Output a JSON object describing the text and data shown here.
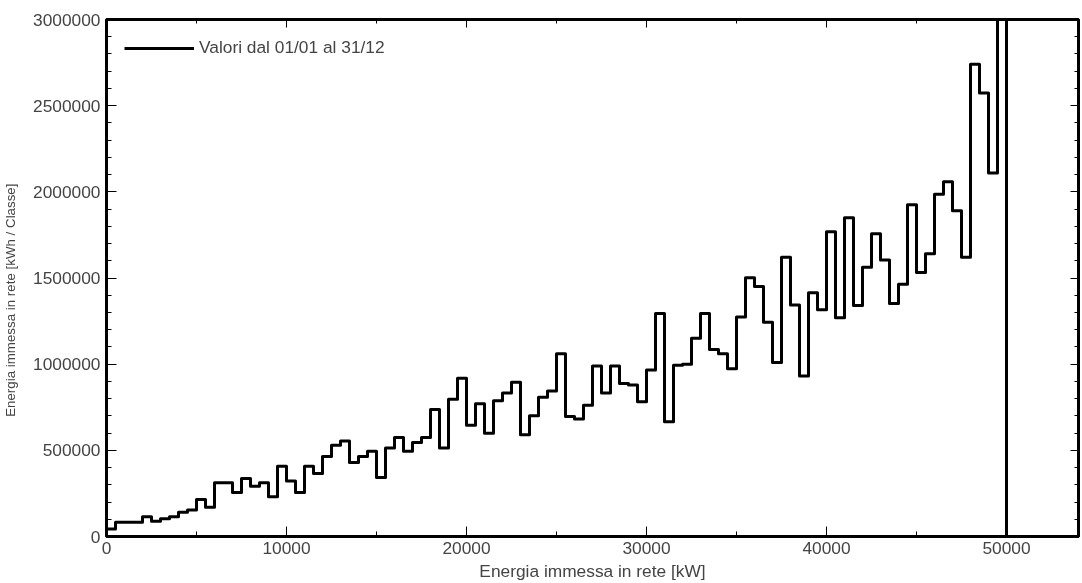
{
  "chart_data": {
    "type": "histogram",
    "xlabel": "Energia immessa in rete [kW]",
    "ylabel": "Energia   immessa   in   rete   [kWh   /   Classe]",
    "bins": [
      0,
      500,
      1000,
      1500,
      2000,
      2500,
      3000,
      3500,
      4000,
      4500,
      5000,
      5500,
      6000,
      6500,
      7000,
      7500,
      8000,
      8500,
      9000,
      9500,
      10000,
      10500,
      11000,
      11500,
      12000,
      12500,
      13000,
      13500,
      14000,
      14500,
      15000,
      15500,
      16000,
      16500,
      17000,
      17500,
      18000,
      18500,
      19000,
      19500,
      20000,
      20500,
      21000,
      21500,
      22000,
      22500,
      23000,
      23500,
      24000,
      24500,
      25000,
      25500,
      26000,
      26500,
      27000,
      27500,
      28000,
      28500,
      29000,
      29500,
      30000,
      30500,
      31000,
      31500,
      32000,
      32500,
      33000,
      33500,
      34000,
      34500,
      35000,
      35500,
      36000,
      36500,
      37000,
      37500,
      38000,
      38500,
      39000,
      39500,
      40000,
      40500,
      41000,
      41500,
      42000,
      42500,
      43000,
      43500,
      44000,
      44500,
      45000,
      45500,
      46000,
      46500,
      47000,
      47500,
      48000,
      48500,
      49000,
      49500,
      50000
    ],
    "series": [
      {
        "name": "Valori dal 01/01 al 31/12",
        "color": "#000000",
        "values": [
          44000,
          83000,
          83000,
          83000,
          115000,
          89000,
          103000,
          115000,
          140000,
          154000,
          214000,
          170000,
          312000,
          312000,
          255000,
          336000,
          292000,
          312000,
          230000,
          408000,
          322000,
          256000,
          408000,
          366000,
          464000,
          530000,
          554000,
          430000,
          464000,
          494000,
          342000,
          514000,
          575000,
          494000,
          545000,
          575000,
          737000,
          514000,
          797000,
          919000,
          646000,
          771000,
          599000,
          788000,
          832000,
          895000,
          591000,
          700000,
          808000,
          844000,
          1061000,
          697000,
          682000,
          761000,
          990000,
          832000,
          990000,
          888000,
          879000,
          782000,
          966000,
          1294000,
          666000,
          994000,
          1000000,
          1150000,
          1294000,
          1085000,
          1061000,
          974000,
          1274000,
          1502000,
          1451000,
          1243000,
          1010000,
          1621000,
          1344000,
          931000,
          1415000,
          1316000,
          1769000,
          1269000,
          1850000,
          1340000,
          1563000,
          1757000,
          1605000,
          1352000,
          1464000,
          1925000,
          1532000,
          1641000,
          1986000,
          2059000,
          1890000,
          1621000,
          2741000,
          2573000,
          2109000,
          3000000
        ]
      }
    ],
    "xlim": [
      0,
      54000
    ],
    "xticks": [
      0,
      10000,
      20000,
      30000,
      40000,
      50000
    ],
    "ylim": [
      0,
      3000000
    ],
    "yticks": [
      0,
      500000,
      1000000,
      1500000,
      2000000,
      2500000,
      3000000
    ],
    "grid": false,
    "legend": "top left",
    "line_style": "solid",
    "marker": "none"
  }
}
